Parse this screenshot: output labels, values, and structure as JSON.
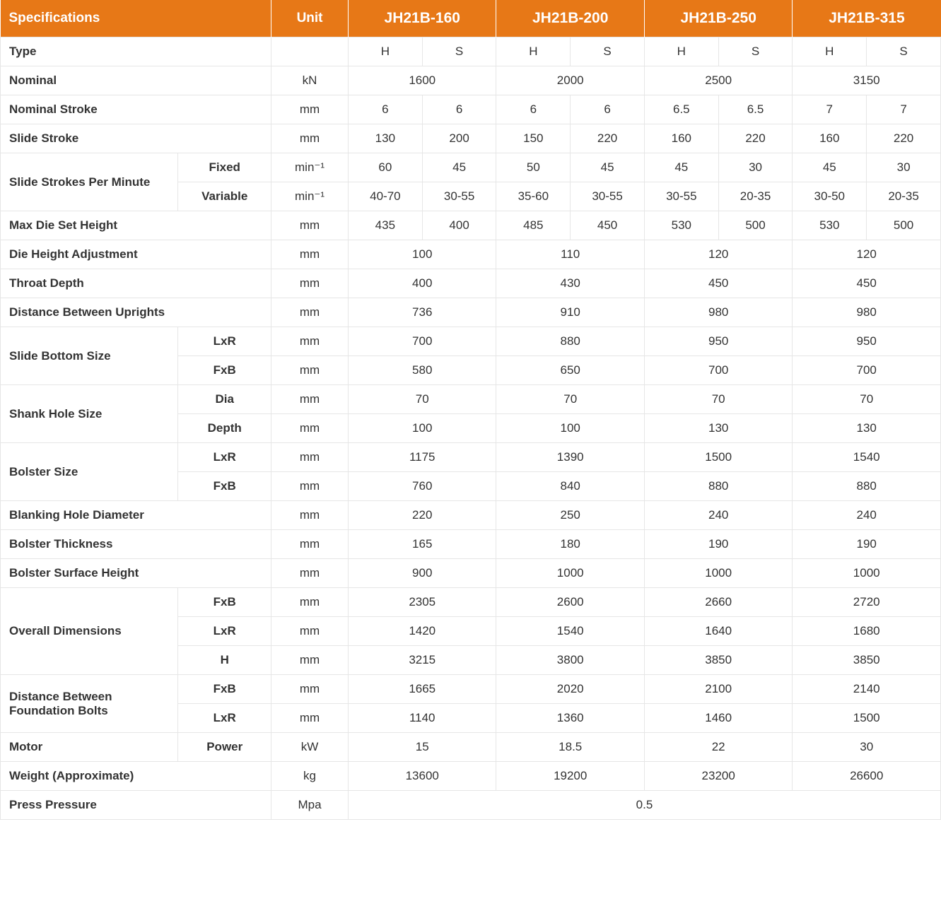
{
  "header": {
    "spec": "Specifications",
    "unit": "Unit",
    "models": [
      "JH21B-160",
      "JH21B-200",
      "JH21B-250",
      "JH21B-315"
    ]
  },
  "labels": {
    "type": "Type",
    "nominal": "Nominal",
    "nominalStroke": "Nominal Stroke",
    "slideStroke": "Slide Stroke",
    "slideStrokesPerMinute": "Slide Strokes Per Minute",
    "fixed": "Fixed",
    "variable": "Variable",
    "maxDieSetHeight": "Max Die Set Height",
    "dieHeightAdjustment": "Die Height Adjustment",
    "throatDepth": "Throat Depth",
    "distanceBetweenUprights": "Distance Between Uprights",
    "slideBottomSize": "Slide Bottom Size",
    "lxr": "LxR",
    "fxb": "FxB",
    "shankHoleSize": "Shank Hole Size",
    "dia": "Dia",
    "depth": "Depth",
    "bolsterSize": "Bolster Size",
    "blankingHoleDiameter": "Blanking Hole Diameter",
    "bolsterThickness": "Bolster Thickness",
    "bolsterSurfaceHeight": "Bolster Surface Height",
    "overallDimensions": "Overall Dimensions",
    "h": "H",
    "distanceBetweenFoundationBolts": "Distance Between Foundation Bolts",
    "motor": "Motor",
    "power": "Power",
    "weightApprox": "Weight (Approximate)",
    "pressPressure": "Press Pressure"
  },
  "units": {
    "kN": "kN",
    "mm": "mm",
    "min1": "min⁻¹",
    "kW": "kW",
    "kg": "kg",
    "Mpa": "Mpa",
    "empty": ""
  },
  "typeHS": {
    "H": "H",
    "S": "S"
  },
  "nominal": [
    "1600",
    "2000",
    "2500",
    "3150"
  ],
  "nominalStroke": [
    "6",
    "6",
    "6",
    "6",
    "6.5",
    "6.5",
    "7",
    "7"
  ],
  "slideStroke": [
    "130",
    "200",
    "150",
    "220",
    "160",
    "220",
    "160",
    "220"
  ],
  "spmFixed": [
    "60",
    "45",
    "50",
    "45",
    "45",
    "30",
    "45",
    "30"
  ],
  "spmVariable": [
    "40-70",
    "30-55",
    "35-60",
    "30-55",
    "30-55",
    "20-35",
    "30-50",
    "20-35"
  ],
  "maxDieSetHeight": [
    "435",
    "400",
    "485",
    "450",
    "530",
    "500",
    "530",
    "500"
  ],
  "dieHeightAdjustment": [
    "100",
    "110",
    "120",
    "120"
  ],
  "throatDepth": [
    "400",
    "430",
    "450",
    "450"
  ],
  "distanceBetweenUprights": [
    "736",
    "910",
    "980",
    "980"
  ],
  "slideBottomLxR": [
    "700",
    "880",
    "950",
    "950"
  ],
  "slideBottomFxB": [
    "580",
    "650",
    "700",
    "700"
  ],
  "shankDia": [
    "70",
    "70",
    "70",
    "70"
  ],
  "shankDepth": [
    "100",
    "100",
    "130",
    "130"
  ],
  "bolsterLxR": [
    "1175",
    "1390",
    "1500",
    "1540"
  ],
  "bolsterFxB": [
    "760",
    "840",
    "880",
    "880"
  ],
  "blankingHoleDiameter": [
    "220",
    "250",
    "240",
    "240"
  ],
  "bolsterThickness": [
    "165",
    "180",
    "190",
    "190"
  ],
  "bolsterSurfaceHeight": [
    "900",
    "1000",
    "1000",
    "1000"
  ],
  "overallFxB": [
    "2305",
    "2600",
    "2660",
    "2720"
  ],
  "overallLxR": [
    "1420",
    "1540",
    "1640",
    "1680"
  ],
  "overallH": [
    "3215",
    "3800",
    "3850",
    "3850"
  ],
  "foundationFxB": [
    "1665",
    "2020",
    "2100",
    "2140"
  ],
  "foundationLxR": [
    "1140",
    "1360",
    "1460",
    "1500"
  ],
  "motorPower": [
    "15",
    "18.5",
    "22",
    "30"
  ],
  "weight": [
    "13600",
    "19200",
    "23200",
    "26600"
  ],
  "pressPressure": "0.5"
}
